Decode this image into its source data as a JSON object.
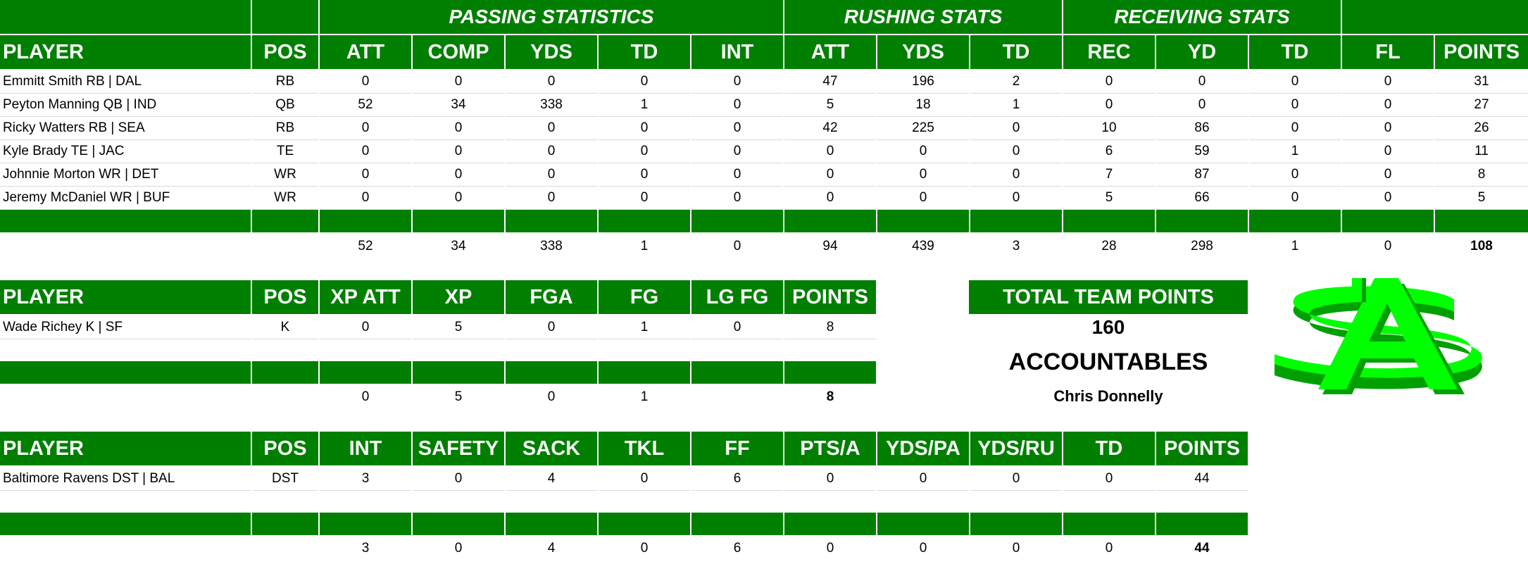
{
  "offense": {
    "group_headers": {
      "passing": "PASSING STATISTICS",
      "rushing": "RUSHING STATS",
      "receiving": "RECEIVING STATS"
    },
    "columns": [
      "PLAYER",
      "POS",
      "ATT",
      "COMP",
      "YDS",
      "TD",
      "INT",
      "ATT",
      "YDS",
      "TD",
      "REC",
      "YD",
      "TD",
      "FL",
      "POINTS"
    ],
    "rows": [
      [
        "Emmitt Smith RB | DAL",
        "RB",
        "0",
        "0",
        "0",
        "0",
        "0",
        "47",
        "196",
        "2",
        "0",
        "0",
        "0",
        "0",
        "31"
      ],
      [
        "Peyton Manning QB | IND",
        "QB",
        "52",
        "34",
        "338",
        "1",
        "0",
        "5",
        "18",
        "1",
        "0",
        "0",
        "0",
        "0",
        "27"
      ],
      [
        "Ricky Watters RB | SEA",
        "RB",
        "0",
        "0",
        "0",
        "0",
        "0",
        "42",
        "225",
        "0",
        "10",
        "86",
        "0",
        "0",
        "26"
      ],
      [
        "Kyle Brady TE | JAC",
        "TE",
        "0",
        "0",
        "0",
        "0",
        "0",
        "0",
        "0",
        "0",
        "6",
        "59",
        "1",
        "0",
        "11"
      ],
      [
        "Johnnie Morton WR | DET",
        "WR",
        "0",
        "0",
        "0",
        "0",
        "0",
        "0",
        "0",
        "0",
        "7",
        "87",
        "0",
        "0",
        "8"
      ],
      [
        "Jeremy McDaniel WR | BUF",
        "WR",
        "0",
        "0",
        "0",
        "0",
        "0",
        "0",
        "0",
        "0",
        "5",
        "66",
        "0",
        "0",
        "5"
      ]
    ],
    "totals": [
      "",
      "",
      "52",
      "34",
      "338",
      "1",
      "0",
      "94",
      "439",
      "3",
      "28",
      "298",
      "1",
      "0",
      "108"
    ]
  },
  "kicker": {
    "columns": [
      "PLAYER",
      "POS",
      "XP ATT",
      "XP",
      "FGA",
      "FG",
      "LG FG",
      "POINTS"
    ],
    "rows": [
      [
        "Wade Richey K | SF",
        "K",
        "0",
        "5",
        "0",
        "1",
        "0",
        "8"
      ]
    ],
    "totals": [
      "",
      "",
      "0",
      "5",
      "0",
      "1",
      "",
      "8"
    ]
  },
  "defense": {
    "columns": [
      "PLAYER",
      "POS",
      "INT",
      "SAFETY",
      "SACK",
      "TKL",
      "FF",
      "PTS/A",
      "YDS/PA",
      "YDS/RU",
      "TD",
      "POINTS"
    ],
    "rows": [
      [
        "Baltimore Ravens DST | BAL",
        "DST",
        "3",
        "0",
        "4",
        "0",
        "6",
        "0",
        "0",
        "0",
        "0",
        "44"
      ]
    ],
    "totals": [
      "",
      "",
      "3",
      "0",
      "4",
      "0",
      "6",
      "0",
      "0",
      "0",
      "0",
      "44"
    ]
  },
  "team": {
    "title": "TOTAL TEAM POINTS",
    "points": "160",
    "name": "ACCOUNTABLES",
    "owner": "Chris Donnelly"
  },
  "colors": {
    "header_green": "#007f00",
    "logo_green": "#00ff00",
    "logo_dark_green": "#00a000"
  },
  "logo": {
    "icon": "accountables-dollar-logo-icon"
  }
}
